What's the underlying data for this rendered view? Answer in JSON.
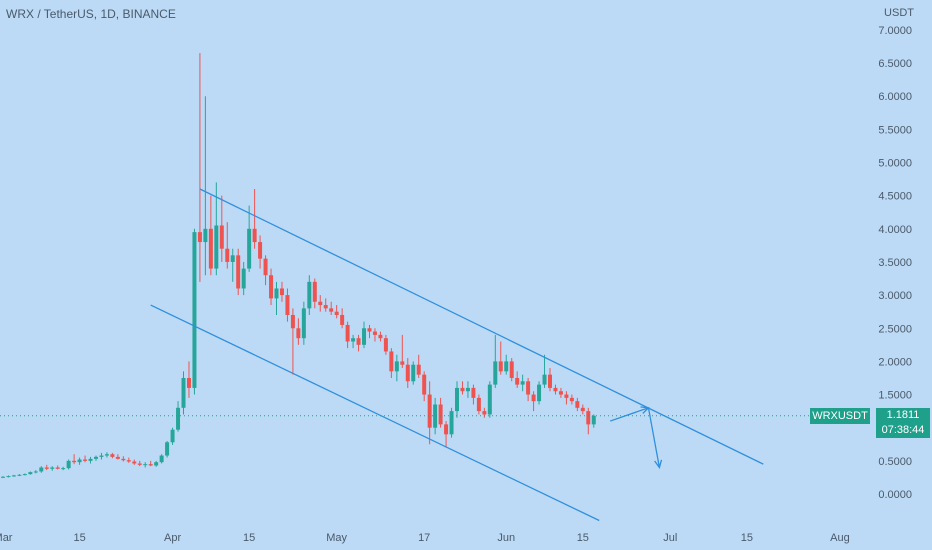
{
  "header": {
    "title": "WRX / TetherUS, 1D, BINANCE",
    "currency": "USDT"
  },
  "ticker": {
    "symbol": "WRXUSDT",
    "last_price": "1.1811",
    "countdown": "07:38:44"
  },
  "colors": {
    "background": "#bcdaf5",
    "up": "#26a69a",
    "down": "#ef5350",
    "drawing": "#2f8fe0",
    "axis_text": "#4a5a6a"
  },
  "chart_data": {
    "type": "candlestick",
    "ylabel": "USDT",
    "ylim": [
      0,
      7
    ],
    "y_ticks": [
      "0.0000",
      "0.5000",
      "1.0000",
      "1.5000",
      "2.0000",
      "2.5000",
      "3.0000",
      "3.5000",
      "4.0000",
      "4.5000",
      "5.0000",
      "5.5000",
      "6.0000",
      "6.5000",
      "7.0000"
    ],
    "x_ticks": [
      {
        "day": 0,
        "label": "Mar"
      },
      {
        "day": 14,
        "label": "15"
      },
      {
        "day": 31,
        "label": "Apr"
      },
      {
        "day": 45,
        "label": "15"
      },
      {
        "day": 61,
        "label": "May"
      },
      {
        "day": 77,
        "label": "17"
      },
      {
        "day": 92,
        "label": "Jun"
      },
      {
        "day": 106,
        "label": "15"
      },
      {
        "day": 122,
        "label": "Jul"
      },
      {
        "day": 136,
        "label": "15"
      },
      {
        "day": 153,
        "label": "Aug"
      }
    ],
    "ohlc": [
      [
        0.25,
        0.27,
        0.24,
        0.26
      ],
      [
        0.26,
        0.28,
        0.25,
        0.27
      ],
      [
        0.27,
        0.29,
        0.26,
        0.28
      ],
      [
        0.28,
        0.3,
        0.27,
        0.29
      ],
      [
        0.29,
        0.31,
        0.28,
        0.3
      ],
      [
        0.3,
        0.34,
        0.29,
        0.33
      ],
      [
        0.33,
        0.36,
        0.31,
        0.34
      ],
      [
        0.34,
        0.42,
        0.32,
        0.4
      ],
      [
        0.4,
        0.44,
        0.36,
        0.38
      ],
      [
        0.38,
        0.42,
        0.35,
        0.4
      ],
      [
        0.4,
        0.43,
        0.37,
        0.38
      ],
      [
        0.38,
        0.41,
        0.36,
        0.39
      ],
      [
        0.39,
        0.52,
        0.37,
        0.5
      ],
      [
        0.5,
        0.6,
        0.45,
        0.48
      ],
      [
        0.48,
        0.55,
        0.44,
        0.52
      ],
      [
        0.52,
        0.58,
        0.48,
        0.5
      ],
      [
        0.5,
        0.56,
        0.46,
        0.53
      ],
      [
        0.53,
        0.58,
        0.5,
        0.56
      ],
      [
        0.56,
        0.62,
        0.52,
        0.58
      ],
      [
        0.58,
        0.63,
        0.55,
        0.6
      ],
      [
        0.6,
        0.62,
        0.54,
        0.56
      ],
      [
        0.56,
        0.6,
        0.52,
        0.53
      ],
      [
        0.53,
        0.57,
        0.49,
        0.51
      ],
      [
        0.51,
        0.55,
        0.47,
        0.49
      ],
      [
        0.49,
        0.52,
        0.44,
        0.46
      ],
      [
        0.46,
        0.5,
        0.42,
        0.44
      ],
      [
        0.44,
        0.48,
        0.4,
        0.45
      ],
      [
        0.45,
        0.5,
        0.42,
        0.43
      ],
      [
        0.43,
        0.5,
        0.41,
        0.48
      ],
      [
        0.48,
        0.6,
        0.46,
        0.58
      ],
      [
        0.58,
        0.8,
        0.55,
        0.78
      ],
      [
        0.78,
        1.0,
        0.74,
        0.97
      ],
      [
        0.97,
        1.4,
        0.94,
        1.3
      ],
      [
        1.3,
        1.85,
        1.2,
        1.75
      ],
      [
        1.75,
        2.0,
        1.45,
        1.6
      ],
      [
        1.6,
        4.0,
        1.5,
        3.95
      ],
      [
        3.95,
        6.65,
        3.2,
        3.8
      ],
      [
        3.8,
        6.0,
        3.3,
        4.0
      ],
      [
        4.0,
        4.5,
        3.3,
        3.4
      ],
      [
        3.4,
        4.7,
        3.3,
        4.05
      ],
      [
        4.05,
        4.5,
        3.5,
        3.7
      ],
      [
        3.7,
        4.1,
        3.4,
        3.5
      ],
      [
        3.5,
        3.7,
        3.2,
        3.6
      ],
      [
        3.6,
        3.7,
        3.0,
        3.1
      ],
      [
        3.1,
        3.5,
        3.0,
        3.4
      ],
      [
        3.4,
        4.35,
        3.35,
        4.0
      ],
      [
        4.0,
        4.6,
        3.7,
        3.8
      ],
      [
        3.8,
        3.9,
        3.4,
        3.55
      ],
      [
        3.55,
        3.6,
        3.15,
        3.3
      ],
      [
        3.3,
        3.4,
        2.85,
        2.95
      ],
      [
        2.95,
        3.2,
        2.7,
        3.1
      ],
      [
        3.1,
        3.2,
        2.9,
        3.0
      ],
      [
        3.0,
        3.1,
        2.6,
        2.7
      ],
      [
        2.7,
        2.8,
        1.8,
        2.5
      ],
      [
        2.5,
        2.65,
        2.25,
        2.35
      ],
      [
        2.35,
        2.9,
        2.25,
        2.8
      ],
      [
        2.8,
        3.3,
        2.7,
        3.2
      ],
      [
        3.2,
        3.25,
        2.8,
        2.9
      ],
      [
        2.9,
        3.0,
        2.75,
        2.85
      ],
      [
        2.85,
        2.95,
        2.75,
        2.8
      ],
      [
        2.8,
        2.9,
        2.7,
        2.75
      ],
      [
        2.75,
        2.85,
        2.65,
        2.7
      ],
      [
        2.7,
        2.8,
        2.5,
        2.55
      ],
      [
        2.55,
        2.6,
        2.2,
        2.3
      ],
      [
        2.3,
        2.4,
        2.2,
        2.35
      ],
      [
        2.35,
        2.4,
        2.15,
        2.25
      ],
      [
        2.25,
        2.6,
        2.2,
        2.5
      ],
      [
        2.5,
        2.55,
        2.35,
        2.45
      ],
      [
        2.45,
        2.5,
        2.3,
        2.4
      ],
      [
        2.4,
        2.45,
        2.3,
        2.35
      ],
      [
        2.35,
        2.4,
        2.1,
        2.15
      ],
      [
        2.15,
        2.2,
        1.75,
        1.85
      ],
      [
        1.85,
        2.1,
        1.7,
        2.0
      ],
      [
        2.0,
        2.4,
        1.9,
        1.95
      ],
      [
        1.95,
        2.05,
        1.6,
        1.7
      ],
      [
        1.7,
        2.0,
        1.65,
        1.95
      ],
      [
        1.95,
        2.1,
        1.75,
        1.8
      ],
      [
        1.8,
        1.85,
        1.4,
        1.5
      ],
      [
        1.5,
        1.7,
        0.75,
        1.0
      ],
      [
        1.0,
        1.45,
        0.9,
        1.35
      ],
      [
        1.35,
        1.45,
        1.0,
        1.05
      ],
      [
        1.05,
        1.1,
        0.7,
        0.9
      ],
      [
        0.9,
        1.3,
        0.85,
        1.25
      ],
      [
        1.25,
        1.7,
        1.15,
        1.6
      ],
      [
        1.6,
        1.7,
        1.5,
        1.55
      ],
      [
        1.55,
        1.7,
        1.45,
        1.6
      ],
      [
        1.6,
        1.65,
        1.35,
        1.45
      ],
      [
        1.45,
        1.5,
        1.2,
        1.25
      ],
      [
        1.25,
        1.3,
        1.15,
        1.2
      ],
      [
        1.2,
        1.7,
        1.15,
        1.65
      ],
      [
        1.65,
        2.4,
        1.6,
        2.0
      ],
      [
        2.0,
        2.3,
        1.8,
        1.85
      ],
      [
        1.85,
        2.1,
        1.8,
        2.0
      ],
      [
        2.0,
        2.05,
        1.7,
        1.75
      ],
      [
        1.75,
        1.85,
        1.6,
        1.65
      ],
      [
        1.65,
        1.8,
        1.55,
        1.7
      ],
      [
        1.7,
        1.75,
        1.4,
        1.5
      ],
      [
        1.5,
        1.55,
        1.25,
        1.4
      ],
      [
        1.4,
        1.7,
        1.35,
        1.65
      ],
      [
        1.65,
        2.1,
        1.6,
        1.8
      ],
      [
        1.8,
        1.9,
        1.55,
        1.6
      ],
      [
        1.6,
        1.65,
        1.5,
        1.55
      ],
      [
        1.55,
        1.6,
        1.45,
        1.5
      ],
      [
        1.5,
        1.55,
        1.35,
        1.45
      ],
      [
        1.45,
        1.5,
        1.35,
        1.4
      ],
      [
        1.4,
        1.45,
        1.25,
        1.3
      ],
      [
        1.3,
        1.35,
        1.2,
        1.25
      ],
      [
        1.25,
        1.3,
        0.9,
        1.05
      ],
      [
        1.05,
        1.2,
        1.0,
        1.18
      ]
    ],
    "lines": [
      {
        "name": "upper",
        "from": [
          36,
          4.6
        ],
        "to": [
          139,
          0.45
        ]
      },
      {
        "name": "lower",
        "from": [
          27,
          2.85
        ],
        "to": [
          109,
          -0.4
        ]
      }
    ],
    "arrows": [
      {
        "name": "up",
        "from": [
          111,
          1.1
        ],
        "to": [
          118,
          1.3
        ]
      },
      {
        "name": "down",
        "from": [
          118,
          1.3
        ],
        "to": [
          120,
          0.4
        ]
      }
    ],
    "current_price": 1.1811
  }
}
